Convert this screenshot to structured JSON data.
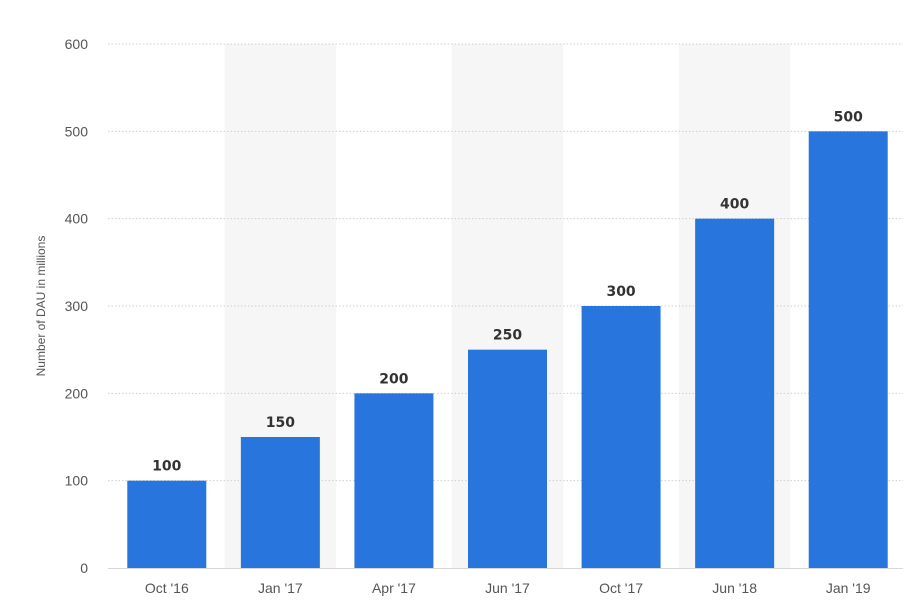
{
  "chart_data": {
    "type": "bar",
    "title": "",
    "xlabel": "",
    "ylabel": "Number of DAU in millions",
    "categories": [
      "Oct '16",
      "Jan '17",
      "Apr '17",
      "Jun '17",
      "Oct '17",
      "Jun '18",
      "Jan '19"
    ],
    "values": [
      100,
      150,
      200,
      250,
      300,
      400,
      500
    ],
    "value_labels": [
      "100",
      "150",
      "200",
      "250",
      "300",
      "400",
      "500"
    ],
    "ylim": [
      0,
      600
    ],
    "yticks": [
      0,
      100,
      200,
      300,
      400,
      500,
      600
    ],
    "ytick_labels": [
      "0",
      "100",
      "200",
      "300",
      "400",
      "500",
      "600"
    ],
    "grid": "horizontal dotted",
    "alternating_column_shading": true,
    "legend": "none",
    "colors": {
      "bar": "#2876dd",
      "grid": "#cfcfcf",
      "band": "#f6f6f6",
      "tick_text": "#555555",
      "data_label_text": "#333333"
    }
  }
}
